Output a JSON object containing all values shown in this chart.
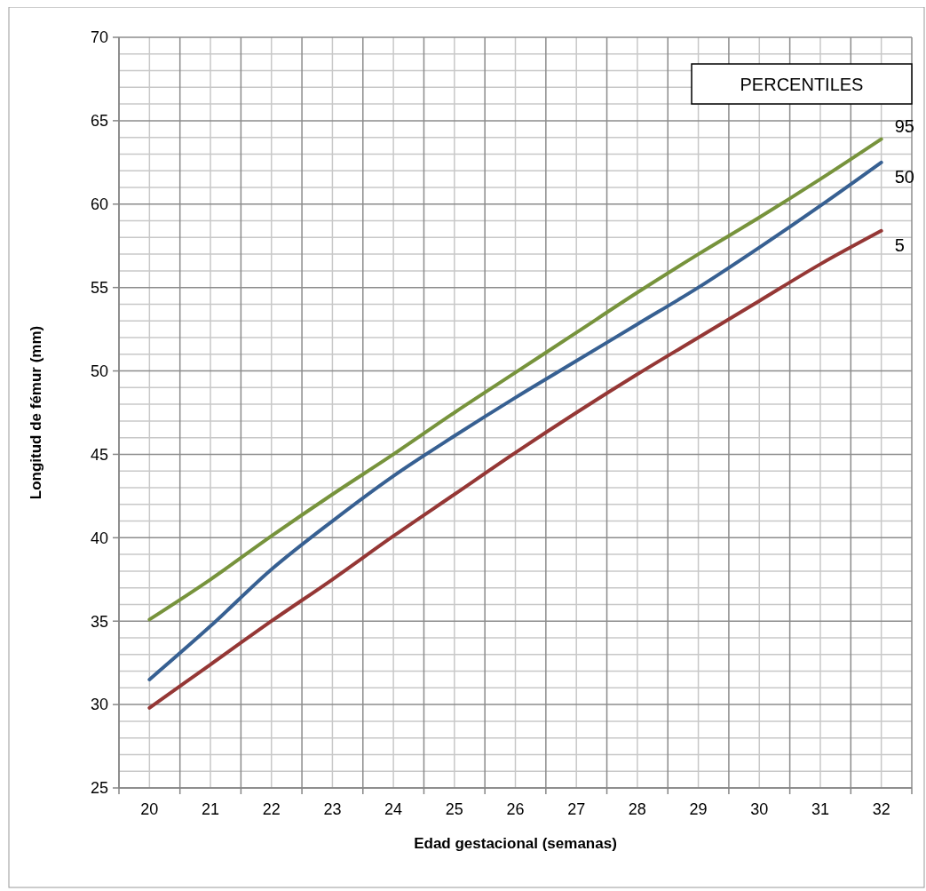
{
  "chart_data": {
    "type": "line",
    "xlabel": "Edad gestacional (semanas)",
    "ylabel": "Longitud de fémur (mm)",
    "legend_title": "PERCENTILES",
    "categories": [
      "20",
      "21",
      "22",
      "23",
      "24",
      "25",
      "26",
      "27",
      "28",
      "29",
      "30",
      "31",
      "32"
    ],
    "ylim": [
      25,
      70
    ],
    "yticks": [
      25,
      30,
      35,
      40,
      45,
      50,
      55,
      60,
      65,
      70
    ],
    "grid": true,
    "marker": "none",
    "line_style": "solid",
    "series": [
      {
        "name": "95",
        "color": "#77933c",
        "values": [
          35.1,
          37.5,
          40.1,
          42.6,
          45.0,
          47.5,
          49.9,
          52.3,
          54.7,
          57.0,
          59.2,
          61.5,
          63.9
        ]
      },
      {
        "name": "50",
        "color": "#376092",
        "values": [
          31.5,
          34.7,
          38.1,
          41.0,
          43.7,
          46.1,
          48.4,
          50.6,
          52.8,
          55.0,
          57.4,
          59.9,
          62.5
        ]
      },
      {
        "name": "5",
        "color": "#953735",
        "values": [
          29.8,
          32.4,
          35.0,
          37.5,
          40.1,
          42.6,
          45.1,
          47.5,
          49.8,
          52.0,
          54.2,
          56.4,
          58.4
        ]
      }
    ]
  }
}
